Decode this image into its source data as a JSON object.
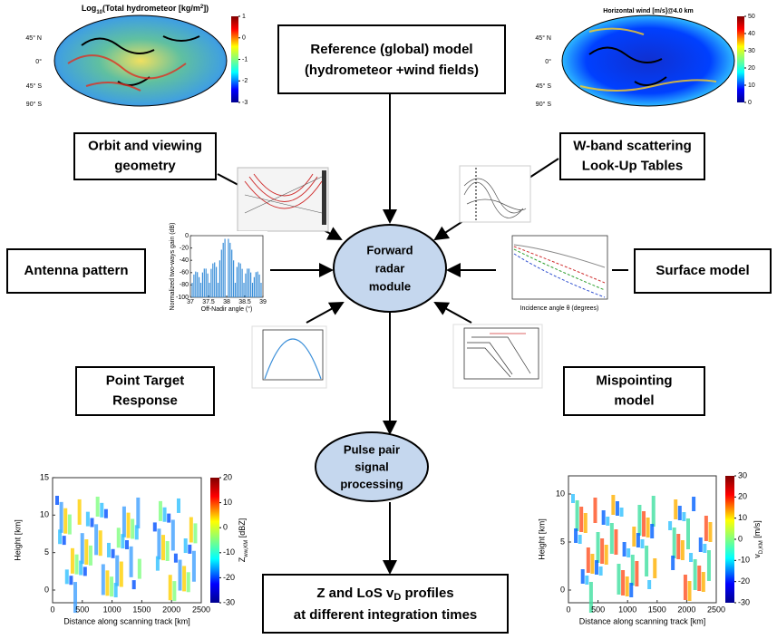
{
  "reference_box": {
    "lines": [
      "Reference (global) model",
      "(hydrometeor +wind fields)"
    ]
  },
  "input_boxes": [
    {
      "lines": [
        "Orbit and viewing",
        "geometry"
      ]
    },
    {
      "lines": [
        "W-band scattering",
        "Look-Up Tables"
      ]
    },
    {
      "lines": [
        "Antenna pattern"
      ]
    },
    {
      "lines": [
        "Surface model"
      ]
    },
    {
      "lines": [
        "Point Target",
        "Response"
      ]
    },
    {
      "lines": [
        "Mispointing",
        "model"
      ]
    }
  ],
  "forward_module": {
    "lines": [
      "Forward",
      "radar",
      "module"
    ]
  },
  "pulse_pair": {
    "lines": [
      "Pulse pair",
      "signal",
      "processing"
    ]
  },
  "output_box": {
    "line1": [
      "Z and LoS v",
      "D",
      " profiles"
    ],
    "line2": "at different integration times"
  },
  "maps": [
    {
      "title": [
        "Log",
        "10",
        "(Total hydrometeor [kg/m",
        "2",
        "])"
      ],
      "colorbar_ticks": [
        1,
        0,
        -1,
        -2,
        -3
      ],
      "lat_labels": [
        "45° N",
        "0°",
        "45° S",
        "90° S"
      ]
    },
    {
      "title": [
        "Horizontal wind [m/s]@4.0 km"
      ],
      "colorbar_ticks": [
        50,
        40,
        30,
        20,
        10,
        0
      ],
      "lat_labels": [
        "45° N",
        "0°",
        "45° S",
        "90° S"
      ]
    }
  ],
  "antenna_plot": {
    "ylabel": "Normalized two-ways gain (dB)",
    "xlabel": "Off-Nadir angle (°)",
    "xticks": [
      37,
      37.5,
      38,
      38.5,
      39
    ],
    "yticks": [
      0,
      -20,
      -40,
      -60,
      -80,
      -100
    ]
  },
  "surface_plot": {
    "xlabel": "Incidence angle θ (degrees)"
  },
  "profiles": [
    {
      "ylabel": "Height [km]",
      "xlabel": "Distance along scanning track [km]",
      "xticks": [
        0,
        500,
        1000,
        1500,
        2000,
        2500
      ],
      "yticks": [
        0,
        5,
        10,
        15
      ],
      "colorbar_ticks": [
        20,
        10,
        0,
        -10,
        -20,
        -30
      ],
      "colorbar_label": [
        "Z",
        "ww,KM",
        " [dBZ]"
      ]
    },
    {
      "ylabel": "Height [km]",
      "xlabel": "Distance along scanning track [km]",
      "xticks": [
        0,
        500,
        1000,
        1500,
        2000,
        2500
      ],
      "yticks": [
        0,
        5,
        10
      ],
      "colorbar_ticks": [
        30,
        20,
        10,
        0,
        -10,
        -20,
        -30
      ],
      "colorbar_label": [
        "v",
        "D,KM",
        " [m/s]"
      ]
    }
  ]
}
